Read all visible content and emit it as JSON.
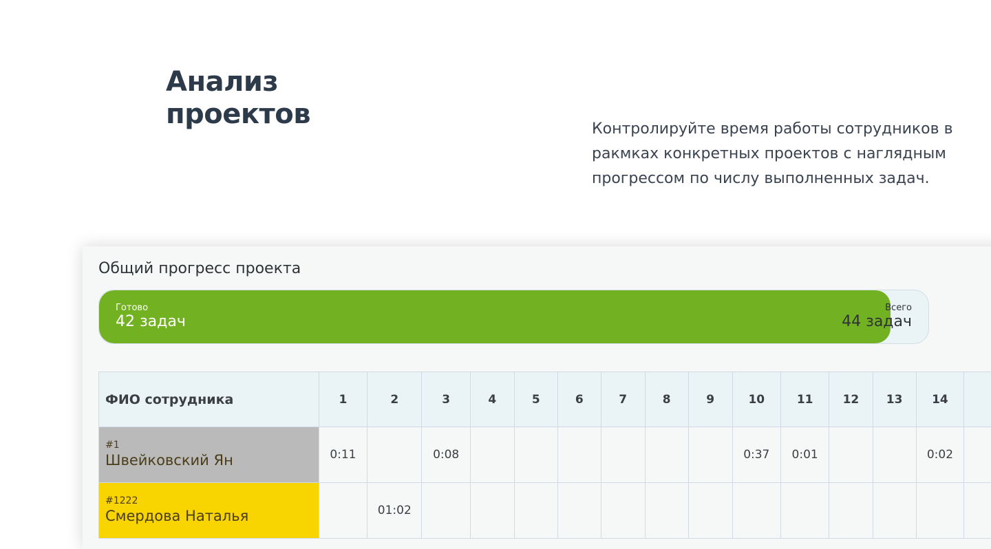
{
  "hero": {
    "title_line1": "Анализ",
    "title_line2": "проектов",
    "description": "Контролируйте время работы сотрудников в ракмках конкретных проектов с наглядным прогрессом по числу выполненных задач."
  },
  "panel": {
    "title": "Общий прогресс проекта",
    "progress": {
      "done_label": "Готово",
      "done_value": "42 задач",
      "total_label": "Всего",
      "total_value": "44 задач",
      "done": 42,
      "total": 44,
      "fill_color": "#72b122"
    },
    "table": {
      "name_header": "ФИО сотрудника",
      "days": [
        "1",
        "2",
        "3",
        "4",
        "5",
        "6",
        "7",
        "8",
        "9",
        "10",
        "11",
        "12",
        "13",
        "14"
      ],
      "rows": [
        {
          "id": "#1",
          "name": "Швейковский Ян",
          "color": "#bababa",
          "cells": [
            "0:11",
            "",
            "0:08",
            "",
            "",
            "",
            "",
            "",
            "",
            "0:37",
            "0:01",
            "",
            "",
            "0:02"
          ]
        },
        {
          "id": "#1222",
          "name": "Смердова Наталья",
          "color": "#f8d400",
          "cells": [
            "",
            "01:02",
            "",
            "",
            "",
            "",
            "",
            "",
            "",
            "",
            "",
            "",
            "",
            ""
          ]
        }
      ]
    }
  }
}
